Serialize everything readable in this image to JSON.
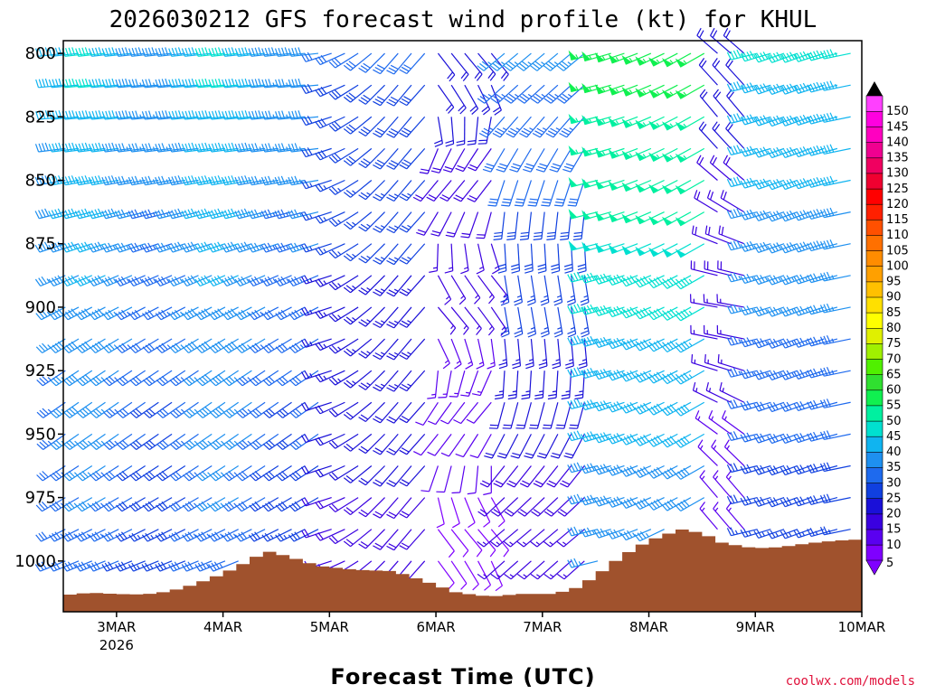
{
  "chart_data": {
    "type": "wind-barb-profile",
    "title": "2026030212 GFS forecast wind profile (kt) for KHUL",
    "xlabel": "Forecast Time (UTC)",
    "x_ticks": [
      {
        "day": 3,
        "label": "3MAR",
        "sub": "2026"
      },
      {
        "day": 4,
        "label": "4MAR",
        "sub": ""
      },
      {
        "day": 5,
        "label": "5MAR",
        "sub": ""
      },
      {
        "day": 6,
        "label": "6MAR",
        "sub": ""
      },
      {
        "day": 7,
        "label": "7MAR",
        "sub": ""
      },
      {
        "day": 8,
        "label": "8MAR",
        "sub": ""
      },
      {
        "day": 9,
        "label": "9MAR",
        "sub": ""
      },
      {
        "day": 10,
        "label": "10MAR",
        "sub": ""
      }
    ],
    "x_range_days": [
      2.5,
      10.0
    ],
    "y_ticks": [
      800,
      825,
      850,
      875,
      900,
      925,
      950,
      975,
      1000
    ],
    "y_range_hpa": [
      795,
      1020
    ],
    "barb_levels_hpa": [
      800,
      812.5,
      825,
      837.5,
      850,
      862.5,
      875,
      887.5,
      900,
      912.5,
      925,
      937.5,
      950,
      962.5,
      975,
      987.5,
      1000
    ],
    "barb_time_step_hours": 3,
    "colorbar_kt": [
      5,
      10,
      15,
      20,
      25,
      30,
      35,
      40,
      45,
      50,
      55,
      60,
      65,
      70,
      75,
      80,
      85,
      90,
      95,
      100,
      105,
      110,
      115,
      120,
      125,
      130,
      135,
      140,
      145,
      150
    ],
    "colorbar_colors": [
      "#7f00ff",
      "#5a00f0",
      "#3a00e0",
      "#1a10d8",
      "#1040e0",
      "#1e6aee",
      "#1e90f0",
      "#10b4f0",
      "#00e0d0",
      "#00f0a0",
      "#10f050",
      "#30e030",
      "#50f000",
      "#a0f000",
      "#e0f000",
      "#ffff00",
      "#ffe000",
      "#ffc000",
      "#ffa000",
      "#ff8c00",
      "#ff7000",
      "#ff5000",
      "#ff2000",
      "#ff0000",
      "#f00030",
      "#f00060",
      "#f00090",
      "#ff00c0",
      "#ff00e0",
      "#ff40ff"
    ],
    "colorbar_labels": [
      "5",
      "10",
      "15",
      "20",
      "25",
      "30",
      "35",
      "40",
      "45",
      "50",
      "55",
      "60",
      "65",
      "70",
      "75",
      "80",
      "85",
      "90",
      "95",
      "100",
      "105",
      "110",
      "115",
      "120",
      "125",
      "130",
      "135",
      "140",
      "145",
      "150"
    ],
    "surface_pressure_hpa": [
      {
        "day": 2.5,
        "p": 1013.5
      },
      {
        "day": 2.75,
        "p": 1012.5
      },
      {
        "day": 3.0,
        "p": 1013
      },
      {
        "day": 3.25,
        "p": 1013.2
      },
      {
        "day": 3.5,
        "p": 1012
      },
      {
        "day": 3.75,
        "p": 1009
      },
      {
        "day": 4.0,
        "p": 1005
      },
      {
        "day": 4.25,
        "p": 1000
      },
      {
        "day": 4.4,
        "p": 996
      },
      {
        "day": 4.6,
        "p": 998
      },
      {
        "day": 4.9,
        "p": 1002
      },
      {
        "day": 5.25,
        "p": 1003.5
      },
      {
        "day": 5.6,
        "p": 1004
      },
      {
        "day": 5.9,
        "p": 1008
      },
      {
        "day": 6.2,
        "p": 1012.5
      },
      {
        "day": 6.5,
        "p": 1014
      },
      {
        "day": 6.8,
        "p": 1013
      },
      {
        "day": 7.1,
        "p": 1013
      },
      {
        "day": 7.3,
        "p": 1011
      },
      {
        "day": 7.5,
        "p": 1006
      },
      {
        "day": 7.75,
        "p": 998
      },
      {
        "day": 8.0,
        "p": 992
      },
      {
        "day": 8.3,
        "p": 987.5
      },
      {
        "day": 8.5,
        "p": 989
      },
      {
        "day": 8.7,
        "p": 993
      },
      {
        "day": 9.0,
        "p": 995
      },
      {
        "day": 9.25,
        "p": 994.5
      },
      {
        "day": 9.5,
        "p": 993
      },
      {
        "day": 9.75,
        "p": 992
      },
      {
        "day": 10.0,
        "p": 991.5
      }
    ],
    "terrain_color": "#a0522d",
    "source_credit": "coolwx.com/models"
  }
}
